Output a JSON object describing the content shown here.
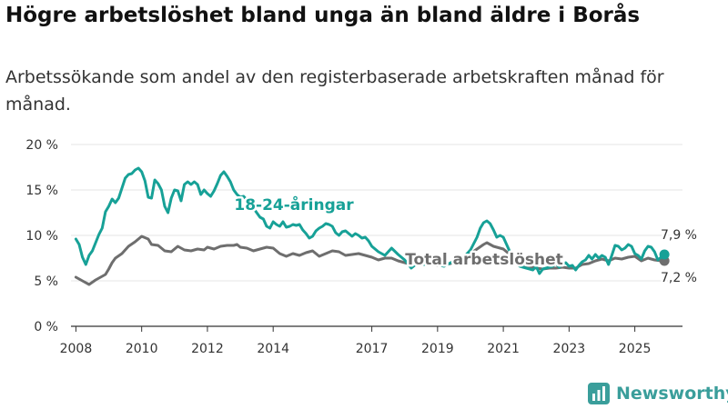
{
  "title": "Högre arbetslöshet bland unga än bland äldre i Borås",
  "subtitle": "Arbetssökande som andel av den registerbaserade arbetskraften månad för månad.",
  "brand": "Newsworthy",
  "colors": {
    "youth": "#17a197",
    "total": "#6e6e6e",
    "grid": "#e6e6e6",
    "axis": "#333333",
    "brand": "#3a9e9b"
  },
  "chart_data": {
    "type": "line",
    "title": "Högre arbetslöshet bland unga än bland äldre i Borås",
    "xlabel": "",
    "ylabel": "",
    "xlim": [
      2007.85,
      2026.45
    ],
    "ylim": [
      0,
      20
    ],
    "grid": true,
    "y_ticks": [
      {
        "value": 0,
        "label": "0 %"
      },
      {
        "value": 5,
        "label": "5 %"
      },
      {
        "value": 10,
        "label": "10 %"
      },
      {
        "value": 15,
        "label": "15 %"
      },
      {
        "value": 20,
        "label": "20 %"
      }
    ],
    "x_ticks": [
      {
        "value": 2008,
        "label": "2008"
      },
      {
        "value": 2010,
        "label": "2010"
      },
      {
        "value": 2012,
        "label": "2012"
      },
      {
        "value": 2014,
        "label": "2014"
      },
      {
        "value": 2017,
        "label": "2017"
      },
      {
        "value": 2019,
        "label": "2019"
      },
      {
        "value": 2021,
        "label": "2021"
      },
      {
        "value": 2023,
        "label": "2023"
      },
      {
        "value": 2025,
        "label": "2025"
      }
    ],
    "series": [
      {
        "name": "18-24-åringar",
        "label": "18-24-åringar",
        "end_label": "7,9 %",
        "points": [
          [
            2008.0,
            9.6
          ],
          [
            2008.1,
            9.0
          ],
          [
            2008.2,
            7.6
          ],
          [
            2008.3,
            6.8
          ],
          [
            2008.4,
            7.8
          ],
          [
            2008.5,
            8.3
          ],
          [
            2008.6,
            9.2
          ],
          [
            2008.7,
            10.1
          ],
          [
            2008.8,
            10.8
          ],
          [
            2008.9,
            12.6
          ],
          [
            2009.0,
            13.2
          ],
          [
            2009.1,
            14.0
          ],
          [
            2009.2,
            13.6
          ],
          [
            2009.3,
            14.1
          ],
          [
            2009.4,
            15.2
          ],
          [
            2009.5,
            16.3
          ],
          [
            2009.6,
            16.7
          ],
          [
            2009.7,
            16.8
          ],
          [
            2009.8,
            17.2
          ],
          [
            2009.9,
            17.4
          ],
          [
            2010.0,
            17.0
          ],
          [
            2010.1,
            16.0
          ],
          [
            2010.2,
            14.2
          ],
          [
            2010.3,
            14.1
          ],
          [
            2010.4,
            16.1
          ],
          [
            2010.5,
            15.7
          ],
          [
            2010.6,
            15.0
          ],
          [
            2010.7,
            13.2
          ],
          [
            2010.8,
            12.5
          ],
          [
            2010.9,
            14.1
          ],
          [
            2011.0,
            15.0
          ],
          [
            2011.1,
            14.9
          ],
          [
            2011.2,
            13.8
          ],
          [
            2011.3,
            15.6
          ],
          [
            2011.4,
            15.9
          ],
          [
            2011.5,
            15.6
          ],
          [
            2011.6,
            15.9
          ],
          [
            2011.7,
            15.6
          ],
          [
            2011.8,
            14.5
          ],
          [
            2011.9,
            15.0
          ],
          [
            2012.0,
            14.6
          ],
          [
            2012.1,
            14.3
          ],
          [
            2012.2,
            14.9
          ],
          [
            2012.3,
            15.7
          ],
          [
            2012.4,
            16.6
          ],
          [
            2012.5,
            17.0
          ],
          [
            2012.6,
            16.5
          ],
          [
            2012.7,
            15.9
          ],
          [
            2012.8,
            15.0
          ],
          [
            2012.9,
            14.5
          ],
          [
            2013.0,
            14.2
          ],
          [
            2013.1,
            14.3
          ],
          [
            2013.2,
            13.9
          ],
          [
            2013.3,
            13.5
          ],
          [
            2013.4,
            13.0
          ],
          [
            2013.5,
            12.5
          ],
          [
            2013.6,
            12.0
          ],
          [
            2013.7,
            11.8
          ],
          [
            2013.8,
            11.0
          ],
          [
            2013.9,
            10.8
          ],
          [
            2014.0,
            11.5
          ],
          [
            2014.1,
            11.2
          ],
          [
            2014.2,
            11.0
          ],
          [
            2014.3,
            11.5
          ],
          [
            2014.4,
            10.9
          ],
          [
            2014.5,
            11.0
          ],
          [
            2014.6,
            11.2
          ],
          [
            2014.7,
            11.1
          ],
          [
            2014.8,
            11.2
          ],
          [
            2014.9,
            10.6
          ],
          [
            2015.0,
            10.2
          ],
          [
            2015.1,
            9.7
          ],
          [
            2015.2,
            9.9
          ],
          [
            2015.3,
            10.5
          ],
          [
            2015.4,
            10.8
          ],
          [
            2015.5,
            11.0
          ],
          [
            2015.6,
            11.3
          ],
          [
            2015.7,
            11.2
          ],
          [
            2015.8,
            11.0
          ],
          [
            2015.9,
            10.3
          ],
          [
            2016.0,
            10.0
          ],
          [
            2016.1,
            10.4
          ],
          [
            2016.2,
            10.5
          ],
          [
            2016.3,
            10.2
          ],
          [
            2016.4,
            9.9
          ],
          [
            2016.5,
            10.2
          ],
          [
            2016.6,
            10.0
          ],
          [
            2016.7,
            9.7
          ],
          [
            2016.8,
            9.8
          ],
          [
            2016.9,
            9.4
          ],
          [
            2017.0,
            8.8
          ],
          [
            2017.2,
            8.2
          ],
          [
            2017.4,
            7.8
          ],
          [
            2017.6,
            8.6
          ],
          [
            2017.8,
            7.9
          ],
          [
            2018.0,
            7.3
          ],
          [
            2018.2,
            6.4
          ],
          [
            2018.4,
            7.0
          ],
          [
            2018.6,
            6.8
          ],
          [
            2018.8,
            7.2
          ],
          [
            2019.0,
            6.8
          ],
          [
            2019.2,
            6.6
          ],
          [
            2019.4,
            7.0
          ],
          [
            2019.6,
            7.3
          ],
          [
            2019.8,
            7.6
          ],
          [
            2020.0,
            8.4
          ],
          [
            2020.2,
            9.8
          ],
          [
            2020.3,
            10.8
          ],
          [
            2020.4,
            11.4
          ],
          [
            2020.5,
            11.6
          ],
          [
            2020.6,
            11.3
          ],
          [
            2020.7,
            10.6
          ],
          [
            2020.8,
            9.8
          ],
          [
            2020.9,
            10.0
          ],
          [
            2021.0,
            9.8
          ],
          [
            2021.1,
            9.0
          ],
          [
            2021.2,
            8.2
          ],
          [
            2021.3,
            7.2
          ],
          [
            2021.5,
            6.6
          ],
          [
            2021.7,
            6.4
          ],
          [
            2021.9,
            6.2
          ],
          [
            2022.0,
            6.6
          ],
          [
            2022.1,
            5.8
          ],
          [
            2022.2,
            6.3
          ],
          [
            2022.3,
            6.4
          ],
          [
            2022.5,
            6.6
          ],
          [
            2022.6,
            6.9
          ],
          [
            2022.7,
            6.5
          ],
          [
            2022.8,
            6.8
          ],
          [
            2022.9,
            7.0
          ],
          [
            2023.0,
            6.6
          ],
          [
            2023.1,
            6.7
          ],
          [
            2023.2,
            6.2
          ],
          [
            2023.3,
            6.7
          ],
          [
            2023.4,
            7.1
          ],
          [
            2023.5,
            7.3
          ],
          [
            2023.6,
            7.8
          ],
          [
            2023.7,
            7.4
          ],
          [
            2023.8,
            7.9
          ],
          [
            2023.9,
            7.5
          ],
          [
            2024.0,
            7.8
          ],
          [
            2024.1,
            7.6
          ],
          [
            2024.2,
            6.8
          ],
          [
            2024.3,
            7.8
          ],
          [
            2024.4,
            8.9
          ],
          [
            2024.5,
            8.8
          ],
          [
            2024.6,
            8.4
          ],
          [
            2024.7,
            8.6
          ],
          [
            2024.8,
            9.0
          ],
          [
            2024.9,
            8.8
          ],
          [
            2025.0,
            8.0
          ],
          [
            2025.1,
            7.8
          ],
          [
            2025.2,
            7.4
          ],
          [
            2025.3,
            8.3
          ],
          [
            2025.4,
            8.8
          ],
          [
            2025.5,
            8.7
          ],
          [
            2025.6,
            8.2
          ],
          [
            2025.7,
            7.3
          ],
          [
            2025.8,
            7.6
          ],
          [
            2025.9,
            7.9
          ]
        ]
      },
      {
        "name": "Total arbetslöshet",
        "label": "Total arbetslöshet",
        "end_label": "7,2 %",
        "points": [
          [
            2008.0,
            5.4
          ],
          [
            2008.2,
            5.0
          ],
          [
            2008.4,
            4.6
          ],
          [
            2008.6,
            5.1
          ],
          [
            2008.8,
            5.5
          ],
          [
            2008.9,
            5.7
          ],
          [
            2009.0,
            6.3
          ],
          [
            2009.1,
            7.0
          ],
          [
            2009.2,
            7.5
          ],
          [
            2009.4,
            8.0
          ],
          [
            2009.6,
            8.8
          ],
          [
            2009.8,
            9.3
          ],
          [
            2009.9,
            9.6
          ],
          [
            2010.0,
            9.9
          ],
          [
            2010.2,
            9.6
          ],
          [
            2010.3,
            9.0
          ],
          [
            2010.5,
            8.9
          ],
          [
            2010.7,
            8.3
          ],
          [
            2010.9,
            8.2
          ],
          [
            2011.1,
            8.8
          ],
          [
            2011.3,
            8.4
          ],
          [
            2011.5,
            8.3
          ],
          [
            2011.7,
            8.5
          ],
          [
            2011.9,
            8.4
          ],
          [
            2012.0,
            8.7
          ],
          [
            2012.2,
            8.5
          ],
          [
            2012.4,
            8.8
          ],
          [
            2012.6,
            8.9
          ],
          [
            2012.8,
            8.9
          ],
          [
            2012.9,
            9.0
          ],
          [
            2013.0,
            8.7
          ],
          [
            2013.2,
            8.6
          ],
          [
            2013.4,
            8.3
          ],
          [
            2013.6,
            8.5
          ],
          [
            2013.8,
            8.7
          ],
          [
            2014.0,
            8.6
          ],
          [
            2014.2,
            8.0
          ],
          [
            2014.4,
            7.7
          ],
          [
            2014.6,
            8.0
          ],
          [
            2014.8,
            7.8
          ],
          [
            2015.0,
            8.1
          ],
          [
            2015.2,
            8.3
          ],
          [
            2015.4,
            7.7
          ],
          [
            2015.6,
            8.0
          ],
          [
            2015.8,
            8.3
          ],
          [
            2016.0,
            8.2
          ],
          [
            2016.2,
            7.8
          ],
          [
            2016.4,
            7.9
          ],
          [
            2016.6,
            8.0
          ],
          [
            2016.8,
            7.8
          ],
          [
            2017.0,
            7.6
          ],
          [
            2017.2,
            7.3
          ],
          [
            2017.4,
            7.5
          ],
          [
            2017.6,
            7.5
          ],
          [
            2017.8,
            7.2
          ],
          [
            2018.0,
            7.0
          ],
          [
            2018.2,
            6.8
          ],
          [
            2018.4,
            6.9
          ],
          [
            2018.6,
            6.9
          ],
          [
            2018.8,
            6.8
          ],
          [
            2019.0,
            6.7
          ],
          [
            2019.2,
            6.8
          ],
          [
            2019.4,
            6.9
          ],
          [
            2019.6,
            7.3
          ],
          [
            2019.8,
            7.7
          ],
          [
            2020.0,
            8.0
          ],
          [
            2020.2,
            8.5
          ],
          [
            2020.4,
            9.0
          ],
          [
            2020.5,
            9.2
          ],
          [
            2020.7,
            8.8
          ],
          [
            2020.9,
            8.6
          ],
          [
            2021.0,
            8.5
          ],
          [
            2021.2,
            7.9
          ],
          [
            2021.4,
            7.2
          ],
          [
            2021.6,
            6.6
          ],
          [
            2021.8,
            6.6
          ],
          [
            2022.0,
            6.4
          ],
          [
            2022.2,
            6.3
          ],
          [
            2022.4,
            6.4
          ],
          [
            2022.6,
            6.4
          ],
          [
            2022.8,
            6.5
          ],
          [
            2023.0,
            6.4
          ],
          [
            2023.2,
            6.4
          ],
          [
            2023.4,
            6.8
          ],
          [
            2023.6,
            6.9
          ],
          [
            2023.8,
            7.2
          ],
          [
            2024.0,
            7.4
          ],
          [
            2024.2,
            7.2
          ],
          [
            2024.4,
            7.5
          ],
          [
            2024.6,
            7.4
          ],
          [
            2024.8,
            7.6
          ],
          [
            2025.0,
            7.7
          ],
          [
            2025.2,
            7.2
          ],
          [
            2025.4,
            7.5
          ],
          [
            2025.6,
            7.3
          ],
          [
            2025.8,
            7.2
          ],
          [
            2025.9,
            7.2
          ]
        ]
      }
    ]
  }
}
